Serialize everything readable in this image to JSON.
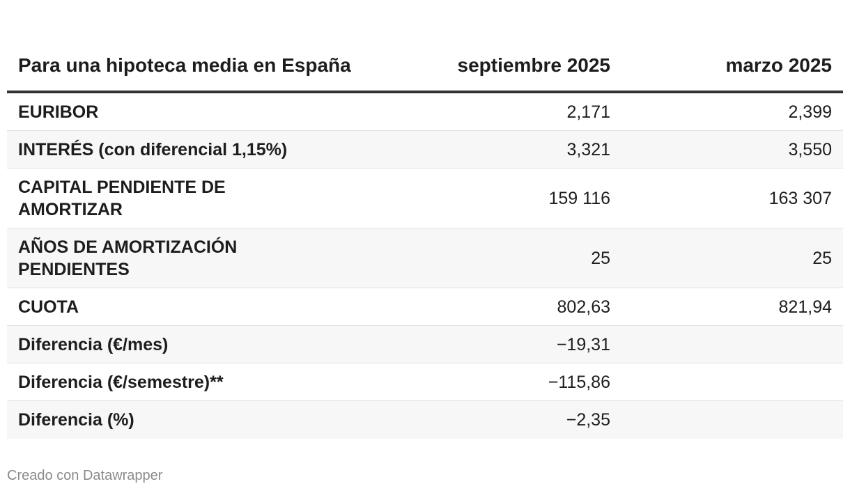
{
  "chart_data": {
    "type": "table",
    "columns": [
      "Para una hipoteca media en España",
      "septiembre 2025",
      "marzo 2025"
    ],
    "rows": [
      {
        "label": "EURIBOR",
        "sep": "2,171",
        "mar": "2,399"
      },
      {
        "label": "INTERÉS (con diferencial 1,15%)",
        "sep": "3,321",
        "mar": "3,550"
      },
      {
        "label": "CAPITAL PENDIENTE DE AMORTIZAR",
        "sep": "159 116",
        "mar": "163 307"
      },
      {
        "label": "AÑOS DE AMORTIZACIÓN PENDIENTES",
        "sep": "25",
        "mar": "25"
      },
      {
        "label": "CUOTA",
        "sep": "802,63",
        "mar": "821,94"
      },
      {
        "label": "Diferencia (€/mes)",
        "sep": "−19,31",
        "mar": ""
      },
      {
        "label": "Diferencia (€/semestre)**",
        "sep": "−115,86",
        "mar": ""
      },
      {
        "label": "Diferencia (%)",
        "sep": "−2,35",
        "mar": ""
      }
    ]
  },
  "footer": "Creado con Datawrapper"
}
